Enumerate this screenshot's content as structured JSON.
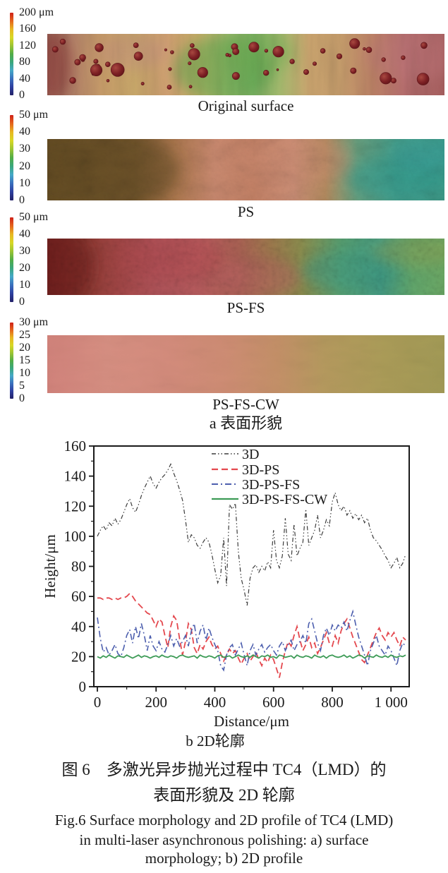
{
  "figure": {
    "panel_a_label": "a 表面形貌",
    "panel_b_label": "b 2D轮廓",
    "caption_cn_line1": "图 6　多激光异步抛光过程中 TC4（LMD）的",
    "caption_cn_line2": "表面形貌及 2D 轮廓",
    "caption_en_line1": "Fig.6 Surface morphology and 2D profile of TC4 (LMD)",
    "caption_en_line2": "in multi-laser asynchronous polishing: a) surface",
    "caption_en_line3": "morphology; b) 2D profile"
  },
  "colorbar_colors": [
    "#cf2018",
    "#e4651c",
    "#e8b822",
    "#d8d825",
    "#9cc433",
    "#52ad46",
    "#3aa77c",
    "#45a8c8",
    "#3a6fbd",
    "#2e3f9f",
    "#232168"
  ],
  "panels": [
    {
      "label": "Original surface",
      "colorbar_ticks": [
        "200 μm",
        "160",
        "120",
        "80",
        "40",
        "0"
      ]
    },
    {
      "label": "PS",
      "colorbar_ticks": [
        "50 μm",
        "40",
        "30",
        "20",
        "10",
        "0"
      ]
    },
    {
      "label": "PS-FS",
      "colorbar_ticks": [
        "50 μm",
        "40",
        "30",
        "20",
        "10",
        "0"
      ]
    },
    {
      "label": "PS-FS-CW",
      "colorbar_ticks": [
        "30 μm",
        "25",
        "20",
        "15",
        "10",
        "5",
        "0"
      ]
    }
  ],
  "chart_data": {
    "type": "line",
    "xlabel": "Distance/μm",
    "ylabel": "Height/μm",
    "xlim": [
      0,
      1050
    ],
    "ylim": [
      0,
      160
    ],
    "x_step": 10,
    "x_ticks": [
      0,
      200,
      400,
      600,
      800,
      1000
    ],
    "x_tick_labels": [
      "0",
      "200",
      "400",
      "600",
      "800",
      "1 000"
    ],
    "x_minor_ticks": [
      100,
      300,
      500,
      700,
      900
    ],
    "y_ticks": [
      0,
      20,
      40,
      60,
      80,
      100,
      120,
      140,
      160
    ],
    "y_minor_step": 10,
    "grid": false,
    "legend_position": "top-center-inside",
    "series": [
      {
        "name": "3D",
        "color": "#3c3c3c",
        "dash": "6 3 1.5 3 1.5 3",
        "width": 1.2,
        "values": [
          100,
          104,
          107,
          104,
          109,
          107,
          112,
          108,
          111,
          116,
          121,
          125,
          119,
          116,
          121,
          127,
          132,
          136,
          140,
          135,
          132,
          136,
          139,
          141,
          144,
          148,
          142,
          137,
          131,
          124,
          111,
          96,
          101,
          99,
          94,
          92,
          96,
          99,
          96,
          88,
          78,
          69,
          74,
          99,
          67,
          121,
          118,
          122,
          90,
          72,
          64,
          54,
          72,
          79,
          81,
          76,
          80,
          77,
          83,
          79,
          104,
          84,
          79,
          87,
          112,
          88,
          84,
          108,
          87,
          92,
          96,
          118,
          94,
          99,
          104,
          114,
          99,
          104,
          111,
          107,
          123,
          129,
          121,
          117,
          120,
          114,
          117,
          112,
          115,
          111,
          114,
          109,
          112,
          104,
          99,
          97,
          94,
          91,
          87,
          84,
          79,
          82,
          86,
          79,
          82,
          88
        ]
      },
      {
        "name": "3D-PS",
        "color": "#e4484e",
        "dash": "9 5",
        "width": 1.8,
        "values": [
          59,
          59,
          58,
          59,
          59,
          58,
          59,
          58,
          59,
          59,
          60,
          62,
          60,
          57,
          55,
          53,
          51,
          49,
          48,
          44,
          40,
          45,
          43,
          34,
          26,
          40,
          47,
          44,
          32,
          21,
          30,
          42,
          38,
          26,
          22,
          28,
          25,
          30,
          33,
          28,
          25,
          27,
          22,
          17,
          21,
          25,
          22,
          24,
          19,
          15,
          19,
          22,
          17,
          20,
          23,
          18,
          14,
          19,
          16,
          21,
          18,
          12,
          6,
          16,
          24,
          30,
          27,
          34,
          40,
          31,
          24,
          28,
          33,
          26,
          29,
          22,
          26,
          31,
          36,
          29,
          27,
          34,
          29,
          37,
          42,
          45,
          39,
          33,
          28,
          23,
          18,
          16,
          21,
          26,
          31,
          36,
          39,
          34,
          31,
          36,
          33,
          36,
          31,
          27,
          33,
          31
        ]
      },
      {
        "name": "3D-PS-FS",
        "color": "#4d5fae",
        "dash": "9 4 2 4",
        "width": 1.6,
        "values": [
          46,
          32,
          23,
          26,
          21,
          24,
          28,
          22,
          20,
          26,
          34,
          38,
          29,
          40,
          32,
          42,
          34,
          24,
          34,
          27,
          24,
          30,
          25,
          23,
          28,
          34,
          27,
          32,
          27,
          30,
          34,
          27,
          37,
          42,
          29,
          37,
          41,
          31,
          39,
          33,
          28,
          24,
          14,
          11,
          21,
          26,
          28,
          21,
          25,
          29,
          21,
          14,
          24,
          28,
          21,
          25,
          28,
          23,
          26,
          28,
          24,
          21,
          27,
          30,
          24,
          28,
          31,
          24,
          28,
          30,
          34,
          29,
          42,
          45,
          37,
          29,
          24,
          34,
          39,
          34,
          41,
          37,
          41,
          39,
          43,
          37,
          44,
          50,
          41,
          33,
          27,
          21,
          14,
          24,
          29,
          34,
          27,
          24,
          21,
          27,
          24,
          19,
          14,
          24,
          29,
          27
        ]
      },
      {
        "name": "3D-PS-FS-CW",
        "color": "#3d9b56",
        "dash": "",
        "width": 1.8,
        "values": [
          20,
          19,
          20.5,
          19.5,
          21,
          20,
          19,
          20.5,
          20,
          19.5,
          21,
          20,
          19,
          20,
          21,
          19.5,
          20.5,
          20,
          19,
          20,
          20.5,
          19.5,
          21,
          20,
          19.5,
          20.5,
          20,
          19,
          20.5,
          21,
          20,
          19.5,
          20,
          20.5,
          19,
          21,
          20,
          19.5,
          20.5,
          20,
          19,
          20.5,
          21,
          19.5,
          20,
          20.5,
          19,
          20,
          21,
          20,
          19.5,
          20.5,
          19.5,
          21,
          20,
          19,
          20.5,
          20,
          21,
          19.5,
          20,
          19,
          21,
          20.5,
          19.5,
          20,
          20.5,
          19,
          21,
          20,
          19.5,
          20.5,
          20,
          19,
          21,
          20,
          19.5,
          20.5,
          19,
          20.5,
          21,
          20,
          19.5,
          20,
          21,
          19.5,
          20.5,
          19,
          20,
          21,
          20.5,
          19,
          20.5,
          20,
          19.5,
          21,
          20,
          19.5,
          20.5,
          19.5,
          21,
          20,
          19.5,
          20.5,
          20,
          21
        ]
      }
    ]
  }
}
